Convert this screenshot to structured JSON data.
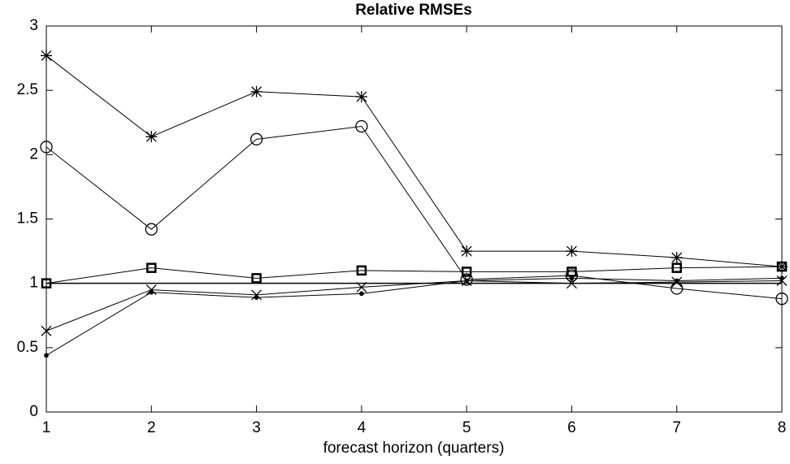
{
  "chart_data": {
    "type": "line",
    "title": "Relative RMSEs",
    "x_label": "forecast horizon (quarters)",
    "x": [
      1,
      2,
      3,
      4,
      5,
      6,
      7,
      8
    ],
    "series": [
      {
        "marker": "star",
        "color": "#000000",
        "values": [
          2.77,
          2.14,
          2.49,
          2.45,
          1.25,
          1.25,
          1.2,
          1.13
        ]
      },
      {
        "marker": "circle",
        "color": "#000000",
        "values": [
          2.06,
          1.42,
          2.12,
          2.22,
          1.03,
          1.06,
          0.96,
          0.88
        ]
      },
      {
        "marker": "square",
        "color": "#000000",
        "values": [
          1.0,
          1.12,
          1.04,
          1.1,
          1.09,
          1.09,
          1.12,
          1.13
        ]
      },
      {
        "marker": "x",
        "color": "#000000",
        "values": [
          0.63,
          0.95,
          0.91,
          0.97,
          1.02,
          1.0,
          1.01,
          1.02
        ]
      },
      {
        "marker": "dot",
        "color": "#000000",
        "values": [
          0.44,
          0.93,
          0.89,
          0.92,
          1.02,
          1.04,
          1.02,
          1.04
        ]
      }
    ],
    "reference_line": 1,
    "xlim": [
      1,
      8
    ],
    "xticks": [
      1,
      2,
      3,
      4,
      5,
      6,
      7,
      8
    ],
    "ylim": [
      0,
      3
    ],
    "yticks": [
      0,
      0.5,
      1,
      1.5,
      2,
      2.5,
      3
    ]
  }
}
